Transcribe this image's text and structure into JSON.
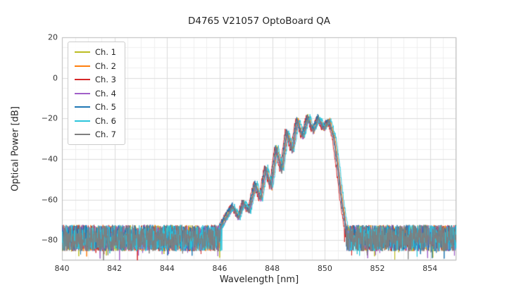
{
  "chart_data": {
    "type": "line",
    "title": "D4765 V21057 OptoBoard QA",
    "xlabel": "Wavelength [nm]",
    "ylabel": "Optical Power [dB]",
    "xlim": [
      840,
      855
    ],
    "ylim": [
      -90,
      20
    ],
    "xticks": [
      840,
      842,
      844,
      846,
      848,
      850,
      852,
      854
    ],
    "yticks": [
      20,
      0,
      -20,
      -40,
      -60,
      -80
    ],
    "grid": {
      "major": true,
      "minor": true,
      "x_minor_step": 0.5,
      "y_minor_step": 5
    },
    "legend_position": "upper-left",
    "noise_floor_db": -79,
    "noise_amplitude_db": 6.5,
    "spectrum_profile": [
      [
        846.0,
        -74
      ],
      [
        846.3,
        -67
      ],
      [
        846.5,
        -63
      ],
      [
        846.7,
        -69
      ],
      [
        846.9,
        -61
      ],
      [
        847.1,
        -66
      ],
      [
        847.35,
        -52
      ],
      [
        847.55,
        -60
      ],
      [
        847.75,
        -44
      ],
      [
        847.95,
        -54
      ],
      [
        848.15,
        -34
      ],
      [
        848.35,
        -46
      ],
      [
        848.55,
        -26
      ],
      [
        848.75,
        -36
      ],
      [
        848.95,
        -20.5
      ],
      [
        849.15,
        -29
      ],
      [
        849.35,
        -19
      ],
      [
        849.55,
        -26
      ],
      [
        849.75,
        -19.5
      ],
      [
        849.95,
        -25
      ],
      [
        850.15,
        -20.5
      ],
      [
        850.35,
        -30
      ],
      [
        850.5,
        -45
      ],
      [
        850.65,
        -62
      ],
      [
        850.8,
        -74
      ]
    ],
    "series": [
      {
        "name": "Ch. 1",
        "color": "#bcbd22",
        "dx": 0.0,
        "dy": 0
      },
      {
        "name": "Ch. 2",
        "color": "#ff7f0e",
        "dx": 0.04,
        "dy": -0.5
      },
      {
        "name": "Ch. 3",
        "color": "#d62728",
        "dx": -0.06,
        "dy": 0
      },
      {
        "name": "Ch. 4",
        "color": "#a05fc8",
        "dx": 0.02,
        "dy": -1
      },
      {
        "name": "Ch. 5",
        "color": "#1f77b4",
        "dx": -0.02,
        "dy": 0.5
      },
      {
        "name": "Ch. 6",
        "color": "#2bc5dc",
        "dx": 0.08,
        "dy": 0
      },
      {
        "name": "Ch. 7",
        "color": "#7f7f7f",
        "dx": 0.01,
        "dy": -0.5
      }
    ]
  }
}
